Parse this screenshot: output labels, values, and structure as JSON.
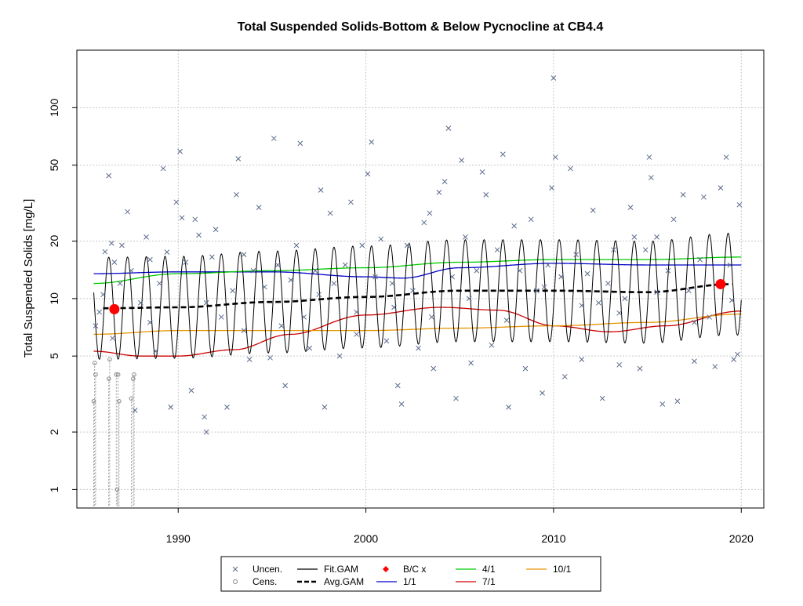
{
  "chart_data": {
    "type": "scatter",
    "title": "Total Suspended Solids-Bottom & Below Pycnocline at CB4.4",
    "xlabel": "",
    "ylabel": "Total Suspended Solids [mg/L]",
    "y_scale": "log",
    "xlim": [
      1984.6,
      2021.2
    ],
    "ylim": [
      0.8,
      200
    ],
    "x_ticks": [
      1990,
      2000,
      2010,
      2020
    ],
    "x_tick_labels": [
      "1990",
      "2000",
      "2010",
      "2020"
    ],
    "y_ticks": [
      1,
      2,
      5,
      10,
      20,
      50,
      100
    ],
    "y_tick_labels": [
      "1",
      "2",
      "5",
      "10",
      "20",
      "50",
      "100"
    ],
    "grid": true,
    "legend_position": "bottom",
    "legend": [
      {
        "label": "Uncen.",
        "kind": "x-marker",
        "color": "#5a6a8a"
      },
      {
        "label": "Cens.",
        "kind": "circle-marker",
        "color": "#888888"
      },
      {
        "label": "Fit.GAM",
        "kind": "line",
        "color": "#000000"
      },
      {
        "label": "Avg.GAM",
        "kind": "dashed-line",
        "color": "#000000"
      },
      {
        "label": "B/C x",
        "kind": "diamond-marker",
        "color": "#ff0000"
      },
      {
        "label": "1/1",
        "kind": "line",
        "color": "#0000cc"
      },
      {
        "label": "4/1",
        "kind": "line",
        "color": "#00cc00"
      },
      {
        "label": "7/1",
        "kind": "line",
        "color": "#cc0000"
      },
      {
        "label": "10/1",
        "kind": "line",
        "color": "#e69500"
      }
    ],
    "colors": {
      "uncensored": "#5a6a8a",
      "censored": "#888888",
      "fit_gam": "#000000",
      "avg_gam": "#000000",
      "bc_marker": "#ff0000",
      "jan1": "#0000cc",
      "apr1": "#00cc00",
      "jul1": "#cc0000",
      "oct1": "#e69500",
      "grid": "#c8c8c8"
    },
    "series_seasonal": [
      {
        "name": "1/1",
        "x": [
          1985.5,
          1990,
          1995,
          2000,
          2002,
          2005,
          2010,
          2015,
          2020
        ],
        "y": [
          13.5,
          13.8,
          13.8,
          13.0,
          12.8,
          14.5,
          15.3,
          15.0,
          15.0
        ]
      },
      {
        "name": "4/1",
        "x": [
          1985.5,
          1990,
          1995,
          2000,
          2005,
          2010,
          2015,
          2020
        ],
        "y": [
          12.0,
          13.5,
          14.0,
          14.5,
          15.5,
          16.0,
          16.0,
          16.5
        ]
      },
      {
        "name": "7/1",
        "x": [
          1985.5,
          1988,
          1990,
          1993,
          1996,
          2000,
          2004,
          2007,
          2010,
          2013,
          2016,
          2020
        ],
        "y": [
          5.3,
          5.0,
          5.0,
          5.4,
          6.5,
          8.2,
          9.0,
          8.7,
          7.2,
          6.7,
          7.2,
          8.6
        ]
      },
      {
        "name": "10/1",
        "x": [
          1985.5,
          1990,
          1995,
          2000,
          2005,
          2010,
          2015,
          2020
        ],
        "y": [
          6.5,
          6.8,
          6.8,
          6.8,
          7.0,
          7.2,
          7.5,
          8.3
        ]
      }
    ],
    "series_avg_gam": {
      "name": "Avg.GAM",
      "x": [
        1986.0,
        1990,
        1995,
        2000,
        2005,
        2010,
        2015,
        2019.5
      ],
      "y": [
        8.9,
        9.0,
        9.6,
        10.2,
        11.0,
        11.0,
        10.8,
        11.9
      ]
    },
    "series_fit_gam": {
      "name": "Fit.GAM",
      "seasonal": "sinusoidal about Avg.GAM",
      "x_range": [
        1985.5,
        2020
      ],
      "amplitude_factor": 1.85
    },
    "bc_points": [
      {
        "x": 1986.6,
        "y": 8.8
      },
      {
        "x": 2018.9,
        "y": 11.9
      }
    ],
    "censored_points": [
      {
        "x": 1985.5,
        "y": 2.9
      },
      {
        "x": 1985.6,
        "y": 4.0
      },
      {
        "x": 1985.55,
        "y": 4.6
      },
      {
        "x": 1986.3,
        "y": 3.8
      },
      {
        "x": 1986.35,
        "y": 4.8
      },
      {
        "x": 1986.7,
        "y": 4.0
      },
      {
        "x": 1986.75,
        "y": 1.0
      },
      {
        "x": 1986.8,
        "y": 4.0
      },
      {
        "x": 1986.85,
        "y": 2.9
      },
      {
        "x": 1987.5,
        "y": 3.0
      },
      {
        "x": 1987.6,
        "y": 3.8
      },
      {
        "x": 1987.65,
        "y": 4.0
      }
    ],
    "uncensored_points": [
      {
        "x": 1985.6,
        "y": 7.2
      },
      {
        "x": 1985.8,
        "y": 8.5
      },
      {
        "x": 1986.0,
        "y": 10.5
      },
      {
        "x": 1986.1,
        "y": 17.6
      },
      {
        "x": 1986.3,
        "y": 44.0
      },
      {
        "x": 1986.45,
        "y": 19.5
      },
      {
        "x": 1986.6,
        "y": 15.5
      },
      {
        "x": 1986.9,
        "y": 12.0
      },
      {
        "x": 1987.0,
        "y": 19.0
      },
      {
        "x": 1987.3,
        "y": 28.5
      },
      {
        "x": 1987.5,
        "y": 14.0
      },
      {
        "x": 1987.7,
        "y": 2.6
      },
      {
        "x": 1988.0,
        "y": 9.5
      },
      {
        "x": 1988.3,
        "y": 21.0
      },
      {
        "x": 1988.5,
        "y": 16.0
      },
      {
        "x": 1988.8,
        "y": 5.3
      },
      {
        "x": 1989.0,
        "y": 12.0
      },
      {
        "x": 1989.2,
        "y": 48.0
      },
      {
        "x": 1989.4,
        "y": 17.5
      },
      {
        "x": 1989.6,
        "y": 2.7
      },
      {
        "x": 1989.9,
        "y": 32.0
      },
      {
        "x": 1990.1,
        "y": 59.0
      },
      {
        "x": 1990.2,
        "y": 26.5
      },
      {
        "x": 1990.4,
        "y": 15.5
      },
      {
        "x": 1990.7,
        "y": 3.3
      },
      {
        "x": 1990.9,
        "y": 26.0
      },
      {
        "x": 1991.1,
        "y": 21.5
      },
      {
        "x": 1991.4,
        "y": 2.4
      },
      {
        "x": 1991.5,
        "y": 2.0
      },
      {
        "x": 1991.8,
        "y": 16.5
      },
      {
        "x": 1992.0,
        "y": 23.0
      },
      {
        "x": 1992.3,
        "y": 8.0
      },
      {
        "x": 1992.6,
        "y": 2.7
      },
      {
        "x": 1992.9,
        "y": 11.0
      },
      {
        "x": 1993.1,
        "y": 35.0
      },
      {
        "x": 1993.2,
        "y": 54.0
      },
      {
        "x": 1993.5,
        "y": 17.0
      },
      {
        "x": 1993.8,
        "y": 4.8
      },
      {
        "x": 1994.0,
        "y": 14.0
      },
      {
        "x": 1994.3,
        "y": 30.0
      },
      {
        "x": 1994.6,
        "y": 11.5
      },
      {
        "x": 1994.9,
        "y": 4.9
      },
      {
        "x": 1995.1,
        "y": 69.0
      },
      {
        "x": 1995.3,
        "y": 15.0
      },
      {
        "x": 1995.7,
        "y": 3.5
      },
      {
        "x": 1996.0,
        "y": 12.5
      },
      {
        "x": 1996.3,
        "y": 19.0
      },
      {
        "x": 1996.5,
        "y": 65.0
      },
      {
        "x": 1996.7,
        "y": 8.0
      },
      {
        "x": 1997.0,
        "y": 5.5
      },
      {
        "x": 1997.3,
        "y": 14.0
      },
      {
        "x": 1997.6,
        "y": 37.0
      },
      {
        "x": 1997.8,
        "y": 2.7
      },
      {
        "x": 1998.1,
        "y": 28.0
      },
      {
        "x": 1998.3,
        "y": 12.0
      },
      {
        "x": 1998.6,
        "y": 5.0
      },
      {
        "x": 1998.9,
        "y": 15.0
      },
      {
        "x": 1999.2,
        "y": 32.0
      },
      {
        "x": 1999.5,
        "y": 8.5
      },
      {
        "x": 1999.8,
        "y": 19.0
      },
      {
        "x": 2000.1,
        "y": 45.0
      },
      {
        "x": 2000.3,
        "y": 66.0
      },
      {
        "x": 2000.5,
        "y": 13.0
      },
      {
        "x": 2000.8,
        "y": 20.5
      },
      {
        "x": 2001.1,
        "y": 6.0
      },
      {
        "x": 2001.4,
        "y": 12.0
      },
      {
        "x": 2001.7,
        "y": 3.5
      },
      {
        "x": 2001.9,
        "y": 2.8
      },
      {
        "x": 2002.2,
        "y": 19.0
      },
      {
        "x": 2002.5,
        "y": 11.0
      },
      {
        "x": 2002.8,
        "y": 5.5
      },
      {
        "x": 2003.1,
        "y": 25.0
      },
      {
        "x": 2003.4,
        "y": 28.0
      },
      {
        "x": 2003.6,
        "y": 4.3
      },
      {
        "x": 2003.9,
        "y": 36.0
      },
      {
        "x": 2004.2,
        "y": 41.0
      },
      {
        "x": 2004.4,
        "y": 78.0
      },
      {
        "x": 2004.6,
        "y": 13.0
      },
      {
        "x": 2004.8,
        "y": 3.0
      },
      {
        "x": 2005.1,
        "y": 53.0
      },
      {
        "x": 2005.3,
        "y": 21.0
      },
      {
        "x": 2005.6,
        "y": 4.6
      },
      {
        "x": 2005.9,
        "y": 14.0
      },
      {
        "x": 2006.2,
        "y": 46.0
      },
      {
        "x": 2006.4,
        "y": 35.0
      },
      {
        "x": 2006.7,
        "y": 5.7
      },
      {
        "x": 2007.0,
        "y": 18.0
      },
      {
        "x": 2007.3,
        "y": 57.0
      },
      {
        "x": 2007.6,
        "y": 2.7
      },
      {
        "x": 2007.9,
        "y": 24.0
      },
      {
        "x": 2008.2,
        "y": 14.0
      },
      {
        "x": 2008.5,
        "y": 4.3
      },
      {
        "x": 2008.8,
        "y": 26.0
      },
      {
        "x": 2009.1,
        "y": 11.0
      },
      {
        "x": 2009.4,
        "y": 3.2
      },
      {
        "x": 2009.7,
        "y": 15.0
      },
      {
        "x": 2009.9,
        "y": 38.0
      },
      {
        "x": 2010.0,
        "y": 143.0
      },
      {
        "x": 2010.1,
        "y": 55.0
      },
      {
        "x": 2010.4,
        "y": 13.0
      },
      {
        "x": 2010.6,
        "y": 3.9
      },
      {
        "x": 2010.9,
        "y": 48.0
      },
      {
        "x": 2011.2,
        "y": 17.0
      },
      {
        "x": 2011.5,
        "y": 4.8
      },
      {
        "x": 2011.8,
        "y": 13.5
      },
      {
        "x": 2012.1,
        "y": 29.0
      },
      {
        "x": 2012.4,
        "y": 9.5
      },
      {
        "x": 2012.6,
        "y": 3.0
      },
      {
        "x": 2012.9,
        "y": 12.0
      },
      {
        "x": 2013.2,
        "y": 18.0
      },
      {
        "x": 2013.5,
        "y": 4.5
      },
      {
        "x": 2013.8,
        "y": 10.0
      },
      {
        "x": 2014.1,
        "y": 30.0
      },
      {
        "x": 2014.3,
        "y": 21.0
      },
      {
        "x": 2014.6,
        "y": 4.3
      },
      {
        "x": 2014.9,
        "y": 18.0
      },
      {
        "x": 2015.1,
        "y": 55.0
      },
      {
        "x": 2015.2,
        "y": 43.0
      },
      {
        "x": 2015.5,
        "y": 21.0
      },
      {
        "x": 2015.8,
        "y": 2.8
      },
      {
        "x": 2016.1,
        "y": 14.0
      },
      {
        "x": 2016.4,
        "y": 26.0
      },
      {
        "x": 2016.6,
        "y": 2.9
      },
      {
        "x": 2016.9,
        "y": 35.0
      },
      {
        "x": 2017.2,
        "y": 11.0
      },
      {
        "x": 2017.5,
        "y": 4.7
      },
      {
        "x": 2017.8,
        "y": 16.0
      },
      {
        "x": 2018.0,
        "y": 34.0
      },
      {
        "x": 2018.3,
        "y": 8.0
      },
      {
        "x": 2018.6,
        "y": 4.4
      },
      {
        "x": 2018.9,
        "y": 38.0
      },
      {
        "x": 2019.2,
        "y": 55.0
      },
      {
        "x": 2019.4,
        "y": 15.0
      },
      {
        "x": 2019.6,
        "y": 4.8
      },
      {
        "x": 2019.8,
        "y": 5.1
      },
      {
        "x": 2019.9,
        "y": 31.0
      },
      {
        "x": 1986.5,
        "y": 6.2
      },
      {
        "x": 1988.5,
        "y": 7.5
      },
      {
        "x": 1991.5,
        "y": 9.5
      },
      {
        "x": 1993.5,
        "y": 6.8
      },
      {
        "x": 1995.5,
        "y": 7.2
      },
      {
        "x": 1997.5,
        "y": 10.5
      },
      {
        "x": 1999.5,
        "y": 6.5
      },
      {
        "x": 2001.5,
        "y": 9.0
      },
      {
        "x": 2003.5,
        "y": 8.0
      },
      {
        "x": 2005.5,
        "y": 10.0
      },
      {
        "x": 2007.5,
        "y": 7.7
      },
      {
        "x": 2009.5,
        "y": 11.5
      },
      {
        "x": 2011.5,
        "y": 9.2
      },
      {
        "x": 2013.5,
        "y": 8.4
      },
      {
        "x": 2015.5,
        "y": 10.8
      },
      {
        "x": 2017.5,
        "y": 7.5
      },
      {
        "x": 2019.5,
        "y": 9.8
      }
    ]
  }
}
